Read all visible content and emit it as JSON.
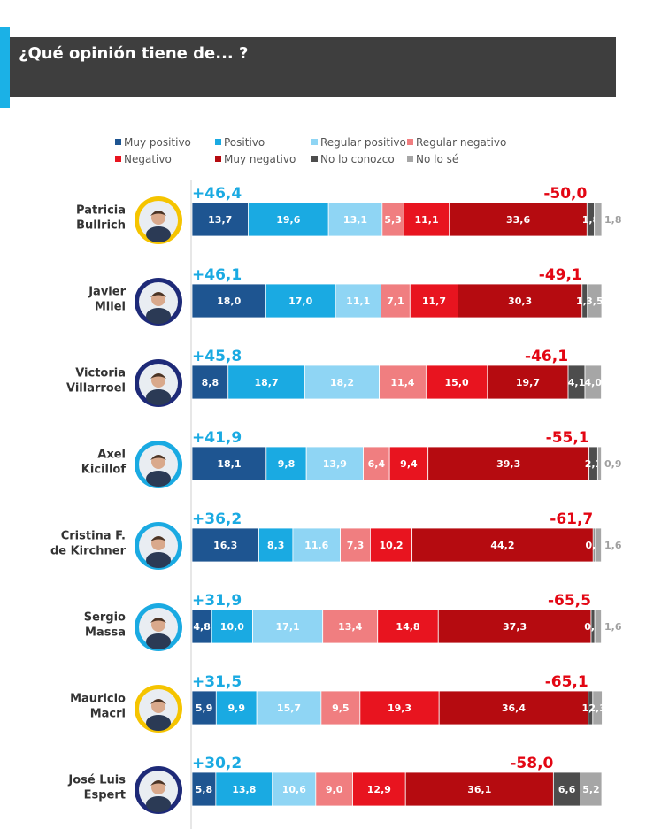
{
  "header": {
    "title": "¿Qué opinión tiene de...  ?"
  },
  "colors": {
    "muy_positivo": "#1e5591",
    "positivo": "#1aaae2",
    "regular_positivo": "#8fd5f4",
    "regular_negativo": "#f07e80",
    "negativo": "#e8141f",
    "muy_negativo": "#b50b10",
    "no_lo_conozco": "#4d4d4d",
    "no_lo_se": "#a6a6a6",
    "positive_total": "#1aaae2",
    "negative_total": "#e30613"
  },
  "legend": [
    {
      "label": "Muy positivo",
      "color": "#1e5591"
    },
    {
      "label": "Positivo",
      "color": "#1aaae2"
    },
    {
      "label": "Regular positivo",
      "color": "#8fd5f4"
    },
    {
      "label": "Regular negativo",
      "color": "#f07e80"
    },
    {
      "label": "Negativo",
      "color": "#e8141f"
    },
    {
      "label": "Muy negativo",
      "color": "#b50b10"
    },
    {
      "label": "No lo conozco",
      "color": "#4d4d4d"
    },
    {
      "label": "No lo sé",
      "color": "#a6a6a6"
    }
  ],
  "chart_data": {
    "type": "bar",
    "orientation": "horizontal",
    "stacked": true,
    "title": "¿Qué opinión tiene de...  ?",
    "categories": [
      "Patricia\nBullrich",
      "Javier\nMilei",
      "Victoria\nVillarroel",
      "Axel\nKicillof",
      "Cristina F.\nde Kirchner",
      "Sergio\nMassa",
      "Mauricio\nMacri",
      "José Luis\nEspert"
    ],
    "series": [
      {
        "name": "Muy positivo",
        "values": [
          13.7,
          18.0,
          8.8,
          18.1,
          16.3,
          4.8,
          5.9,
          5.8
        ]
      },
      {
        "name": "Positivo",
        "values": [
          19.6,
          17.0,
          18.7,
          9.8,
          8.3,
          10.0,
          9.9,
          13.8
        ]
      },
      {
        "name": "Regular positivo",
        "values": [
          13.1,
          11.1,
          18.2,
          13.9,
          11.6,
          17.1,
          15.7,
          10.6
        ]
      },
      {
        "name": "Regular negativo",
        "values": [
          5.3,
          7.1,
          11.4,
          6.4,
          7.3,
          13.4,
          9.5,
          9.0
        ]
      },
      {
        "name": "Negativo",
        "values": [
          11.1,
          11.7,
          15.0,
          9.4,
          10.2,
          14.8,
          19.3,
          12.9
        ]
      },
      {
        "name": "Muy negativo",
        "values": [
          33.6,
          30.3,
          19.7,
          39.3,
          44.2,
          37.3,
          36.4,
          36.1
        ]
      },
      {
        "name": "No lo conozco",
        "values": [
          1.8,
          1.3,
          4.1,
          2.1,
          0.4,
          0.9,
          1.1,
          6.6
        ]
      },
      {
        "name": "No lo sé",
        "values": [
          1.8,
          3.5,
          4.0,
          0.9,
          1.6,
          1.6,
          2.3,
          5.2
        ]
      }
    ],
    "value_labels": [
      [
        "13,7",
        "19,6",
        "13,1",
        "5,3",
        "11,1",
        "33,6",
        "1,8",
        "1,8"
      ],
      [
        "18,0",
        "17,0",
        "11,1",
        "7,1",
        "11,7",
        "30,3",
        "1,3",
        "3,5"
      ],
      [
        "8,8",
        "18,7",
        "18,2",
        "11,4",
        "15,0",
        "19,7",
        "4,1",
        "4,0"
      ],
      [
        "18,1",
        "9,8",
        "13,9",
        "6,4",
        "9,4",
        "39,3",
        "2,1",
        "0,9"
      ],
      [
        "16,3",
        "8,3",
        "11,6",
        "7,3",
        "10,2",
        "44,2",
        "0,4",
        "1,6"
      ],
      [
        "4,8",
        "10,0",
        "17,1",
        "13,4",
        "14,8",
        "37,3",
        "0,9",
        "1,6"
      ],
      [
        "5,9",
        "9,9",
        "15,7",
        "9,5",
        "19,3",
        "36,4",
        "1,1",
        "2,3"
      ],
      [
        "5,8",
        "13,8",
        "10,6",
        "9,0",
        "12,9",
        "36,1",
        "6,6",
        "5,2"
      ]
    ],
    "positive_totals": [
      "+46,4",
      "+46,1",
      "+45,8",
      "+41,9",
      "+36,2",
      "+31,9",
      "+31,5",
      "+30,2"
    ],
    "negative_totals": [
      "-50,0",
      "-49,1",
      "-46,1",
      "-55,1",
      "-61,7",
      "-65,5",
      "-65,1",
      "-58,0"
    ],
    "avatar_ring_colors": [
      "#f5c400",
      "#1e2a78",
      "#1e2a78",
      "#1aaae2",
      "#1aaae2",
      "#1aaae2",
      "#f5c400",
      "#1e2a78"
    ],
    "xlim": [
      0,
      100
    ],
    "legend_position": "top"
  }
}
